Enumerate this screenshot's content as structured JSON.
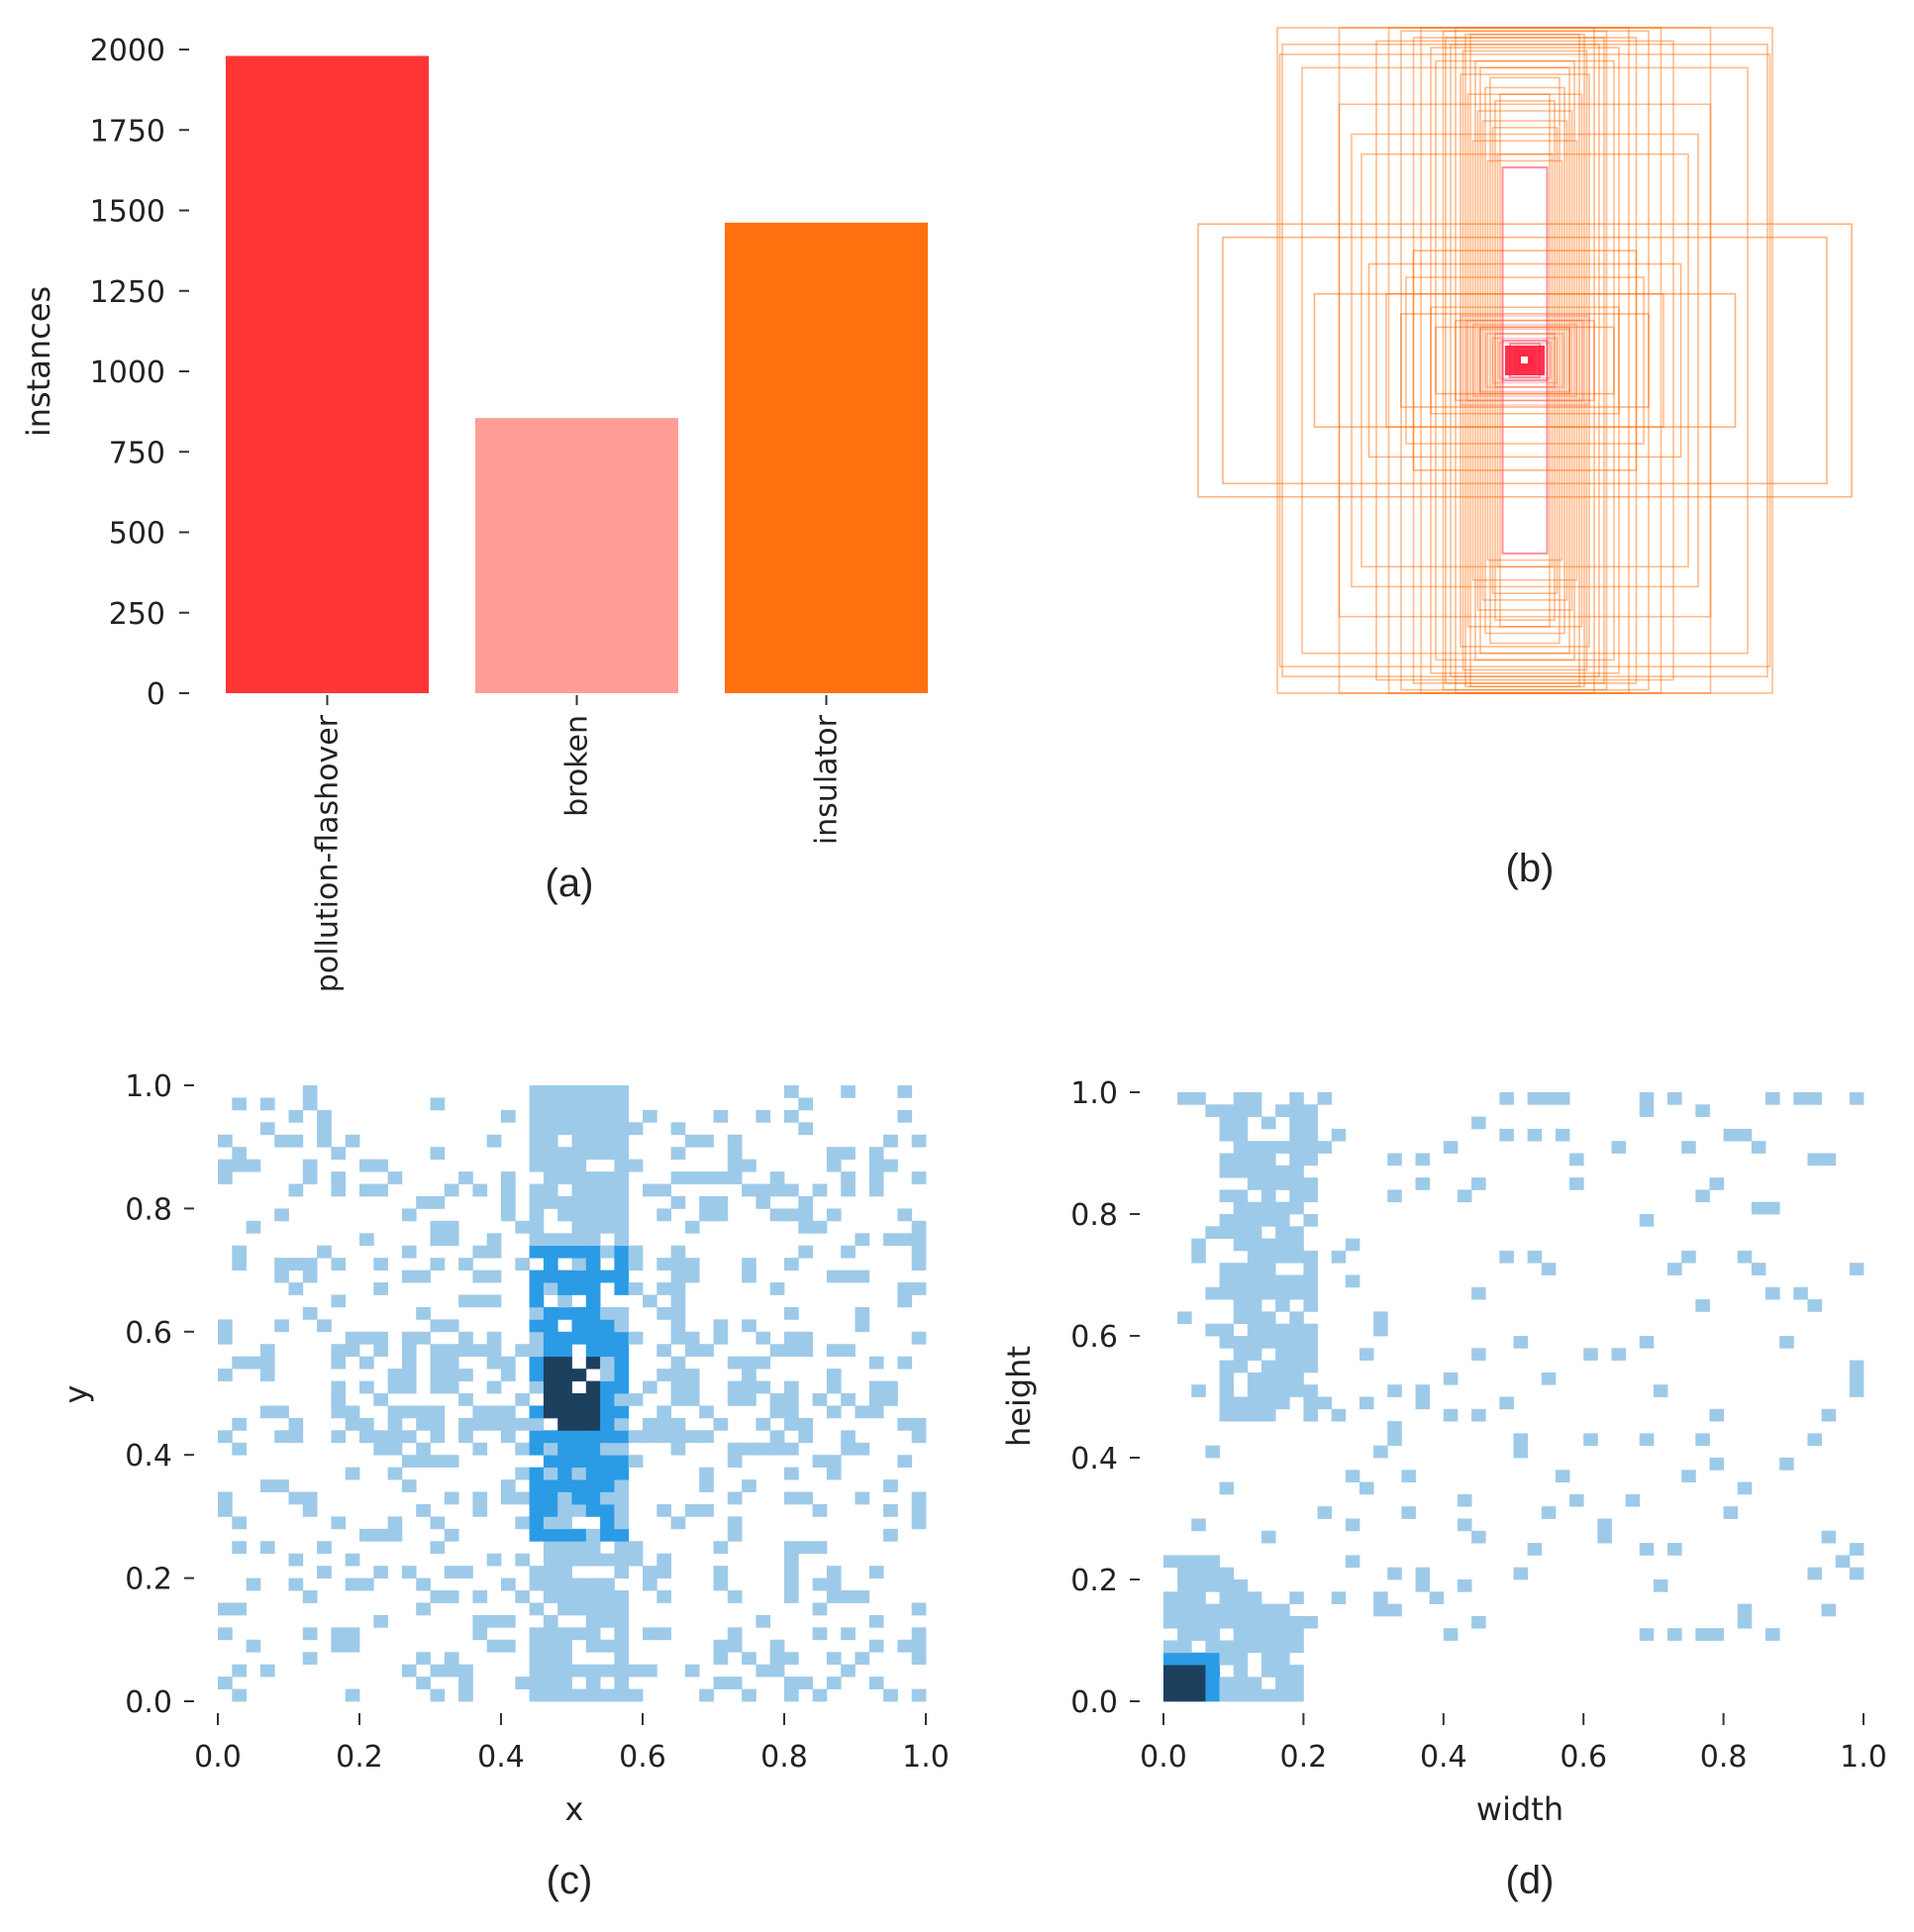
{
  "figure": {
    "captions": [
      "(a)",
      "(b)",
      "(c)",
      "(d)"
    ]
  },
  "colors": {
    "bar_pollution": "#FF3636",
    "bar_broken": "#FF9E96",
    "bar_insulator": "#FF700F",
    "box_stroke": "#FF6A00",
    "center_mark": "#FF1F3D",
    "hist_light": "#9ECAE9",
    "hist_mid": "#2B9BE6",
    "hist_dark": "#1D3F5E"
  },
  "chart_data": [
    {
      "id": "a",
      "type": "bar",
      "categories": [
        "pollution-flashover",
        "broken",
        "insulator"
      ],
      "values": [
        1980,
        855,
        1462
      ],
      "colors": [
        "#FF3636",
        "#FF9E96",
        "#FF700F"
      ],
      "ylabel": "instances",
      "xlabel": "",
      "ylim": [
        0,
        2000
      ],
      "yticks": [
        "0",
        "250",
        "500",
        "750",
        "1000",
        "1250",
        "1500",
        "1750",
        "2000"
      ]
    },
    {
      "id": "b",
      "type": "boxes",
      "title": "",
      "boxes_wh": [
        [
          1.0,
          1.0
        ],
        [
          0.98,
          0.95
        ],
        [
          0.99,
          0.92
        ],
        [
          0.75,
          1.0
        ],
        [
          0.9,
          0.88
        ],
        [
          0.55,
          1.0
        ],
        [
          0.6,
          0.96
        ],
        [
          0.42,
          1.0
        ],
        [
          0.5,
          0.99
        ],
        [
          0.38,
          0.94
        ],
        [
          0.45,
          0.97
        ],
        [
          0.33,
          0.99
        ],
        [
          0.28,
          1.0
        ],
        [
          0.36,
          0.9
        ],
        [
          0.25,
          0.93
        ],
        [
          0.3,
          0.95
        ],
        [
          0.22,
          0.98
        ],
        [
          0.2,
          0.9
        ],
        [
          0.26,
          0.86
        ],
        [
          0.18,
          0.88
        ],
        [
          0.16,
          0.82
        ],
        [
          0.23,
          0.8
        ],
        [
          0.14,
          0.85
        ],
        [
          0.12,
          0.78
        ],
        [
          0.19,
          0.75
        ],
        [
          0.1,
          0.8
        ],
        [
          0.17,
          0.72
        ],
        [
          0.13,
          0.7
        ],
        [
          0.21,
          0.66
        ],
        [
          0.11,
          0.62
        ],
        [
          0.15,
          0.6
        ],
        [
          0.09,
          0.58
        ],
        [
          0.75,
          0.77
        ],
        [
          0.7,
          0.68
        ],
        [
          0.66,
          0.62
        ],
        [
          0.48,
          0.25
        ],
        [
          0.56,
          0.2
        ],
        [
          0.38,
          0.16
        ],
        [
          0.28,
          0.12
        ],
        [
          0.18,
          0.1
        ],
        [
          0.12,
          0.08
        ],
        [
          0.09,
          0.06
        ],
        [
          0.06,
          0.05
        ],
        [
          0.04,
          0.04
        ],
        [
          0.03,
          0.03
        ],
        [
          0.024,
          0.022
        ],
        [
          0.018,
          0.017
        ],
        [
          0.012,
          0.012
        ],
        [
          0.24,
          0.98
        ],
        [
          0.32,
          0.97
        ]
      ]
    },
    {
      "id": "c",
      "type": "heatmap",
      "xlabel": "x",
      "ylabel": "y",
      "xlim": [
        0,
        1
      ],
      "ylim": [
        0,
        1
      ],
      "xticks": [
        "0.0",
        "0.2",
        "0.4",
        "0.6",
        "0.8",
        "1.0"
      ],
      "yticks": [
        "0.0",
        "0.2",
        "0.4",
        "0.6",
        "0.8",
        "1.0"
      ],
      "bins": 50,
      "density": "sparse noise over the field, dense vertical band at x 0.42-0.58, dense horizontal band at y 0.40-0.60, darkest core near (0.5, 0.5)"
    },
    {
      "id": "d",
      "type": "heatmap",
      "xlabel": "width",
      "ylabel": "height",
      "xlim": [
        0,
        1
      ],
      "ylim": [
        0,
        1
      ],
      "xticks": [
        "0.0",
        "0.2",
        "0.4",
        "0.6",
        "0.8",
        "1.0"
      ],
      "yticks": [
        "0.0",
        "0.2",
        "0.4",
        "0.6",
        "0.8",
        "1.0"
      ],
      "bins": 50,
      "density": "dense cluster at width 0.07-0.22 / height 0.45-1.0, dense cluster near origin (width<0.2, height<0.25) with darkest cells at (0.02-0.06, 0.02-0.06), sparse points elsewhere, row of cells along height 1.0"
    }
  ]
}
